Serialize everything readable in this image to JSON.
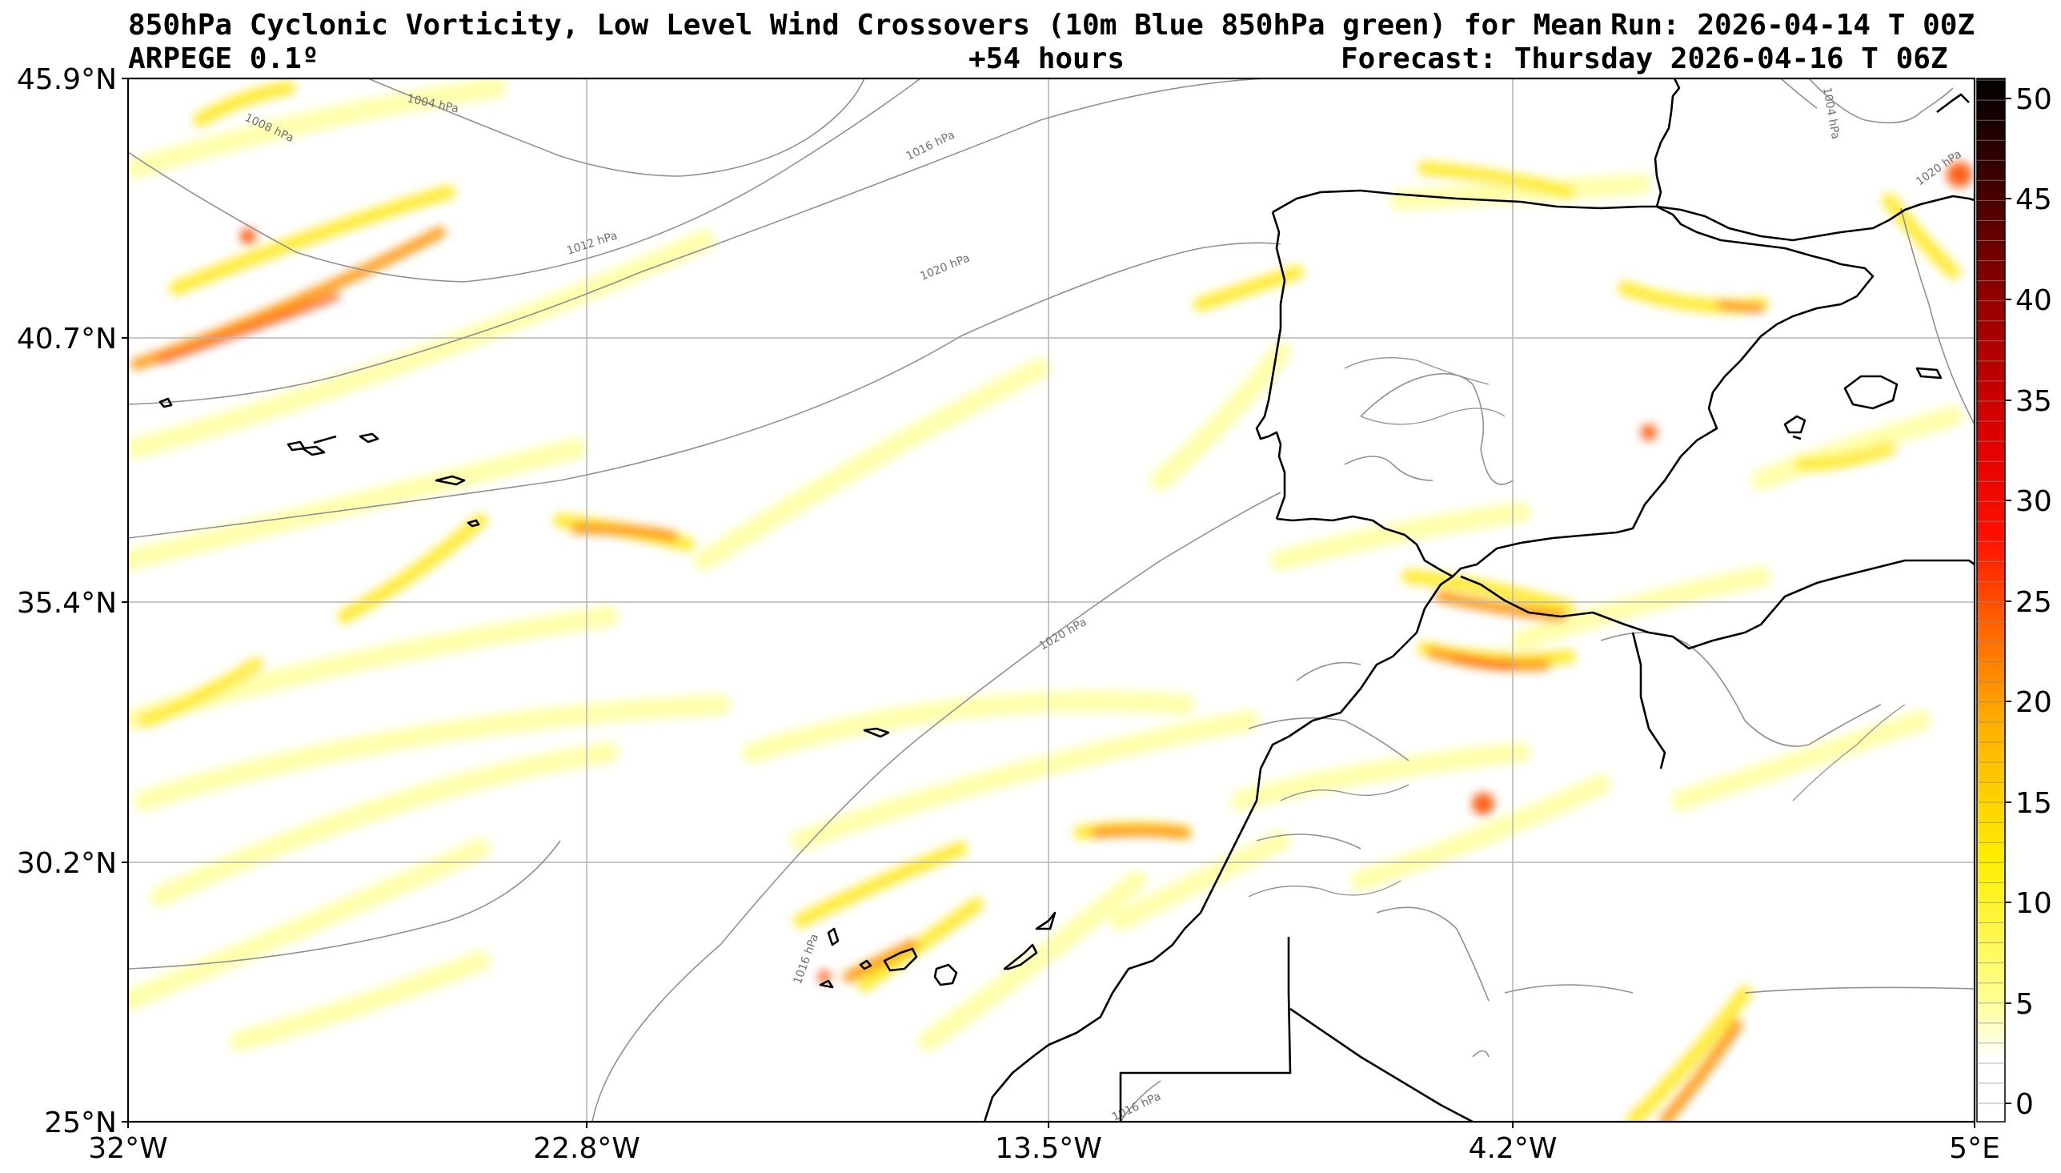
{
  "header": {
    "title_line1": "850hPa Cyclonic Vorticity, Low Level Wind Crossovers (10m Blue 850hPa green) for Mean",
    "model": "ARPEGE 0.1º",
    "lead_time": "+54 hours",
    "forecast": "Forecast: Thursday 2026-04-16 T 06Z",
    "run": "Run: 2026-04-14 T 00Z"
  },
  "map": {
    "lat_labels": [
      "45.9°N",
      "40.7°N",
      "35.4°N",
      "30.2°N",
      "25°N"
    ],
    "lon_labels": [
      "32°W",
      "22.8°W",
      "13.5°W",
      "4.2°W",
      "5°E"
    ],
    "isobar_labels": [
      "1004 hPa",
      "1008 hPa",
      "1012 hPa",
      "1016 hPa",
      "1020 hPa",
      "1020 hPa",
      "1020 hPa",
      "1016 hPa",
      "1004 hPa",
      "1016 hPa"
    ]
  },
  "colorbar": {
    "tick_labels": [
      "50",
      "45",
      "40",
      "35",
      "30",
      "25",
      "20",
      "15",
      "10",
      "5",
      "0"
    ],
    "range": [
      0,
      52
    ],
    "colors": [
      "#ffffff",
      "#ffff80",
      "#ffee00",
      "#ffc000",
      "#ff8800",
      "#ff3000",
      "#e00000",
      "#900000",
      "#400000",
      "#000000"
    ]
  }
}
